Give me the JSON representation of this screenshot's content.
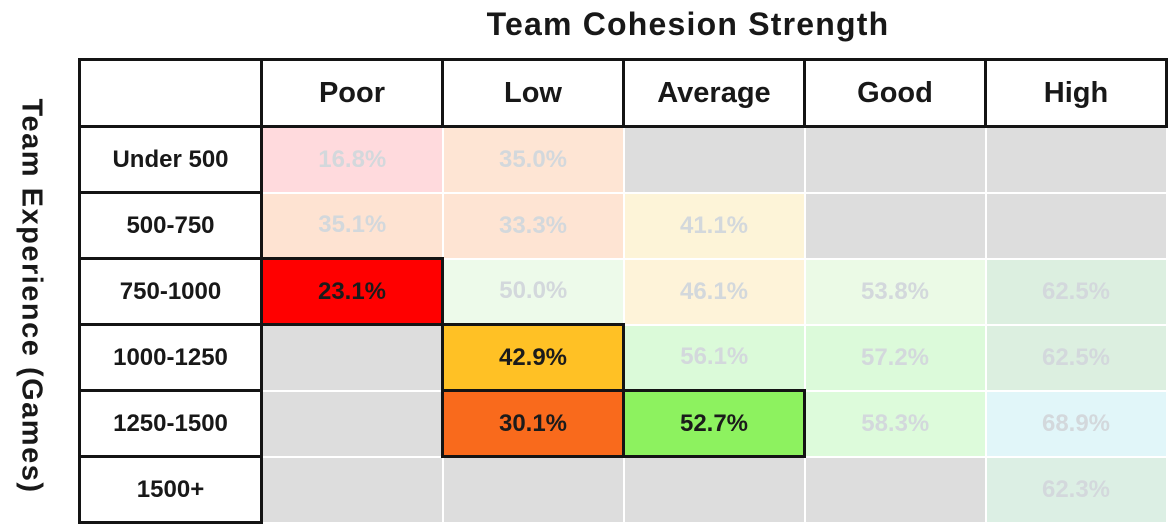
{
  "chart_data": {
    "type": "heatmap",
    "title": "Team Cohesion Strength",
    "ylabel": "Team Experience (Games)",
    "unit": "%",
    "columns": [
      "Poor",
      "Low",
      "Average",
      "Good",
      "High"
    ],
    "rows": [
      "Under 500",
      "500-750",
      "750-1000",
      "1000-1250",
      "1250-1500",
      "1500+"
    ],
    "values": [
      [
        16.8,
        35.0,
        null,
        null,
        null
      ],
      [
        35.1,
        33.3,
        41.1,
        null,
        null
      ],
      [
        23.1,
        50.0,
        46.1,
        53.8,
        62.5
      ],
      [
        null,
        42.9,
        56.1,
        57.2,
        62.5
      ],
      [
        null,
        30.1,
        52.7,
        58.3,
        68.9
      ],
      [
        null,
        null,
        null,
        null,
        62.3
      ]
    ],
    "highlighted": [
      {
        "row": "750-1000",
        "column": "Poor",
        "label": "23.1%",
        "color": "#FF0000"
      },
      {
        "row": "1000-1250",
        "column": "Low",
        "label": "42.9%",
        "color": "#FFC125"
      },
      {
        "row": "1250-1500",
        "column": "Low",
        "label": "30.1%",
        "color": "#F96A1C"
      },
      {
        "row": "1250-1500",
        "column": "Average",
        "label": "52.7%",
        "color": "#8DF25F"
      }
    ],
    "grid": [
      {
        "row_label": "Under 500",
        "cells": [
          {
            "label": "16.8%",
            "bg": "#FFDADD",
            "state": "faded"
          },
          {
            "label": "35.0%",
            "bg": "#FEE5D4",
            "state": "faded"
          },
          {
            "label": "",
            "bg": "#DDDDDD",
            "state": "empty"
          },
          {
            "label": "",
            "bg": "#DDDDDD",
            "state": "empty"
          },
          {
            "label": "",
            "bg": "#DDDDDD",
            "state": "empty"
          }
        ]
      },
      {
        "row_label": "500-750",
        "cells": [
          {
            "label": "35.1%",
            "bg": "#FEE3D2",
            "state": "faded"
          },
          {
            "label": "33.3%",
            "bg": "#FEE4D3",
            "state": "faded"
          },
          {
            "label": "41.1%",
            "bg": "#FDF4D8",
            "state": "faded"
          },
          {
            "label": "",
            "bg": "#DDDDDD",
            "state": "empty"
          },
          {
            "label": "",
            "bg": "#DDDDDD",
            "state": "empty"
          }
        ]
      },
      {
        "row_label": "750-1000",
        "cells": [
          {
            "label": "23.1%",
            "bg": "#FF0000",
            "state": "highlight"
          },
          {
            "label": "50.0%",
            "bg": "#EDFAEA",
            "state": "faded"
          },
          {
            "label": "46.1%",
            "bg": "#FEF3D9",
            "state": "faded"
          },
          {
            "label": "53.8%",
            "bg": "#EBFAE6",
            "state": "faded"
          },
          {
            "label": "62.5%",
            "bg": "#DCEFE0",
            "state": "faded"
          }
        ]
      },
      {
        "row_label": "1000-1250",
        "cells": [
          {
            "label": "",
            "bg": "#DDDDDD",
            "state": "empty"
          },
          {
            "label": "42.9%",
            "bg": "#FFC125",
            "state": "highlight"
          },
          {
            "label": "56.1%",
            "bg": "#DBFAD9",
            "state": "faded"
          },
          {
            "label": "57.2%",
            "bg": "#DCFADA",
            "state": "faded"
          },
          {
            "label": "62.5%",
            "bg": "#DCEFE0",
            "state": "faded"
          }
        ]
      },
      {
        "row_label": "1250-1500",
        "cells": [
          {
            "label": "",
            "bg": "#DDDDDD",
            "state": "empty"
          },
          {
            "label": "30.1%",
            "bg": "#F96A1C",
            "state": "highlight"
          },
          {
            "label": "52.7%",
            "bg": "#8DF25F",
            "state": "highlight"
          },
          {
            "label": "58.3%",
            "bg": "#DDFBDB",
            "state": "faded"
          },
          {
            "label": "68.9%",
            "bg": "#E1F6F9",
            "state": "faded"
          }
        ]
      },
      {
        "row_label": "1500+",
        "cells": [
          {
            "label": "",
            "bg": "#DDDDDD",
            "state": "empty"
          },
          {
            "label": "",
            "bg": "#DDDDDD",
            "state": "empty"
          },
          {
            "label": "",
            "bg": "#DDDDDD",
            "state": "empty"
          },
          {
            "label": "",
            "bg": "#DDDDDD",
            "state": "empty"
          },
          {
            "label": "62.3%",
            "bg": "#DCEFE4",
            "state": "faded"
          }
        ]
      }
    ]
  },
  "colors": {
    "empty_cell": "#DDDDDD",
    "grid_border": "#141414",
    "faded_text": "#D3D8DC",
    "dark_text": "#1B1B1B",
    "highlight_red": "#FF0000",
    "highlight_amber": "#FFC125",
    "highlight_orange": "#F96A1C",
    "highlight_green": "#8DF25F"
  }
}
